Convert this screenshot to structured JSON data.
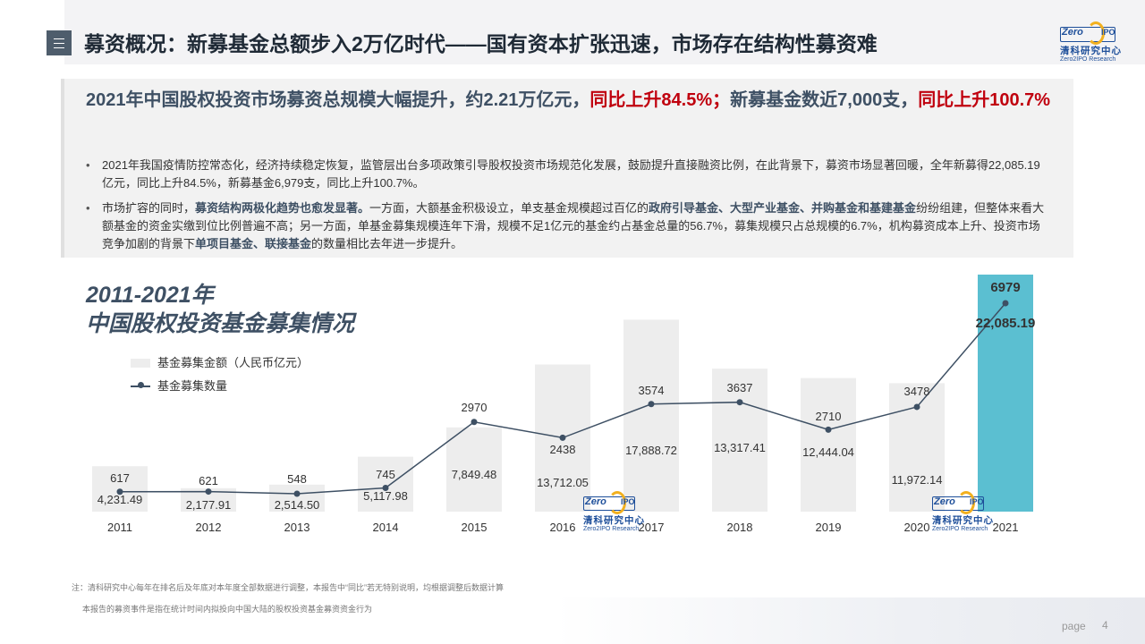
{
  "header": {
    "title": "募资概况：新募基金总额步入2万亿时代——国有资本扩张迅速，市场存在结构性募资难",
    "logo": {
      "zero": "Zero",
      "ipo": "IPO",
      "cn": "清科研究中心",
      "en": "Zero2IPO Research"
    }
  },
  "summary": {
    "headline_a": "2021年中国股权投资市场募资总规模大幅提升，约2.21万亿元，",
    "headline_b": "同比上升84.5%；",
    "headline_c": "新募基金数近7,000支，",
    "headline_d": "同比上升100.7%",
    "bullet1": "2021年我国疫情防控常态化，经济持续稳定恢复，监管层出台多项政策引导股权投资市场规范化发展，鼓励提升直接融资比例，在此背景下，募资市场显著回暖，全年新募得22,085.19亿元，同比上升84.5%，新募基金6,979支，同比上升100.7%。",
    "bullet2_a": "市场扩容的同时，",
    "bullet2_b": "募资结构两极化趋势也愈发显著。",
    "bullet2_c": "一方面，大额基金积极设立，单支基金规模超过百亿的",
    "bullet2_d": "政府引导基金、大型产业基金、并购基金和基建基金",
    "bullet2_e": "纷纷组建，但整体来看大额基金的资金实缴到位比例普遍不高；另一方面，单基金募集规模连年下滑，规模不足1亿元的基金约占基金总量的56.7%，募集规模只占总规模的6.7%，机构募资成本上升、投资市场竞争加剧的背景下",
    "bullet2_f": "单项目基金、联接基金",
    "bullet2_g": "的数量相比去年进一步提升。"
  },
  "chart_title_line1": "2011-2021年",
  "chart_title_line2": "中国股权投资基金募集情况",
  "chart_data": {
    "type": "bar",
    "categories": [
      "2011",
      "2012",
      "2013",
      "2014",
      "2015",
      "2016",
      "2017",
      "2018",
      "2019",
      "2020",
      "2021"
    ],
    "series": [
      {
        "name": "基金募集金额（人民币亿元）",
        "type": "bar",
        "values": [
          4231.49,
          2177.91,
          2514.5,
          5117.98,
          7849.48,
          13712.05,
          17888.72,
          13317.41,
          12444.04,
          11972.14,
          22085.19
        ],
        "labels": [
          "4,231.49",
          "2,177.91",
          "2,514.50",
          "5,117.98",
          "7,849.48",
          "13,712.05",
          "17,888.72",
          "13,317.41",
          "12,444.04",
          "11,972.14",
          "22,085.19"
        ]
      },
      {
        "name": "基金募集数量",
        "type": "line",
        "values": [
          617,
          621,
          548,
          745,
          2970,
          2438,
          3574,
          3637,
          2710,
          3478,
          6979
        ],
        "labels": [
          "617",
          "621",
          "548",
          "745",
          "2970",
          "2438",
          "3574",
          "3637",
          "2710",
          "3478",
          "6979"
        ]
      }
    ],
    "colors": {
      "bar": "#ededed",
      "bar_highlight": "#5bbfd1",
      "line": "#3e5064"
    }
  },
  "watermark": {
    "zero": "Zero",
    "ipo": "IPO",
    "cn": "清科研究中心",
    "en": "Zero2IPO Research"
  },
  "notes": {
    "line1": "注：清科研究中心每年在排名后及年底对本年度全部数据进行调整，本报告中“同比”若无特别说明，均根据调整后数据计算",
    "line2": "本报告的募资事件是指在统计时间内拟投向中国大陆的股权投资基金募资资金行为"
  },
  "page": {
    "label": "page",
    "number": "4"
  }
}
